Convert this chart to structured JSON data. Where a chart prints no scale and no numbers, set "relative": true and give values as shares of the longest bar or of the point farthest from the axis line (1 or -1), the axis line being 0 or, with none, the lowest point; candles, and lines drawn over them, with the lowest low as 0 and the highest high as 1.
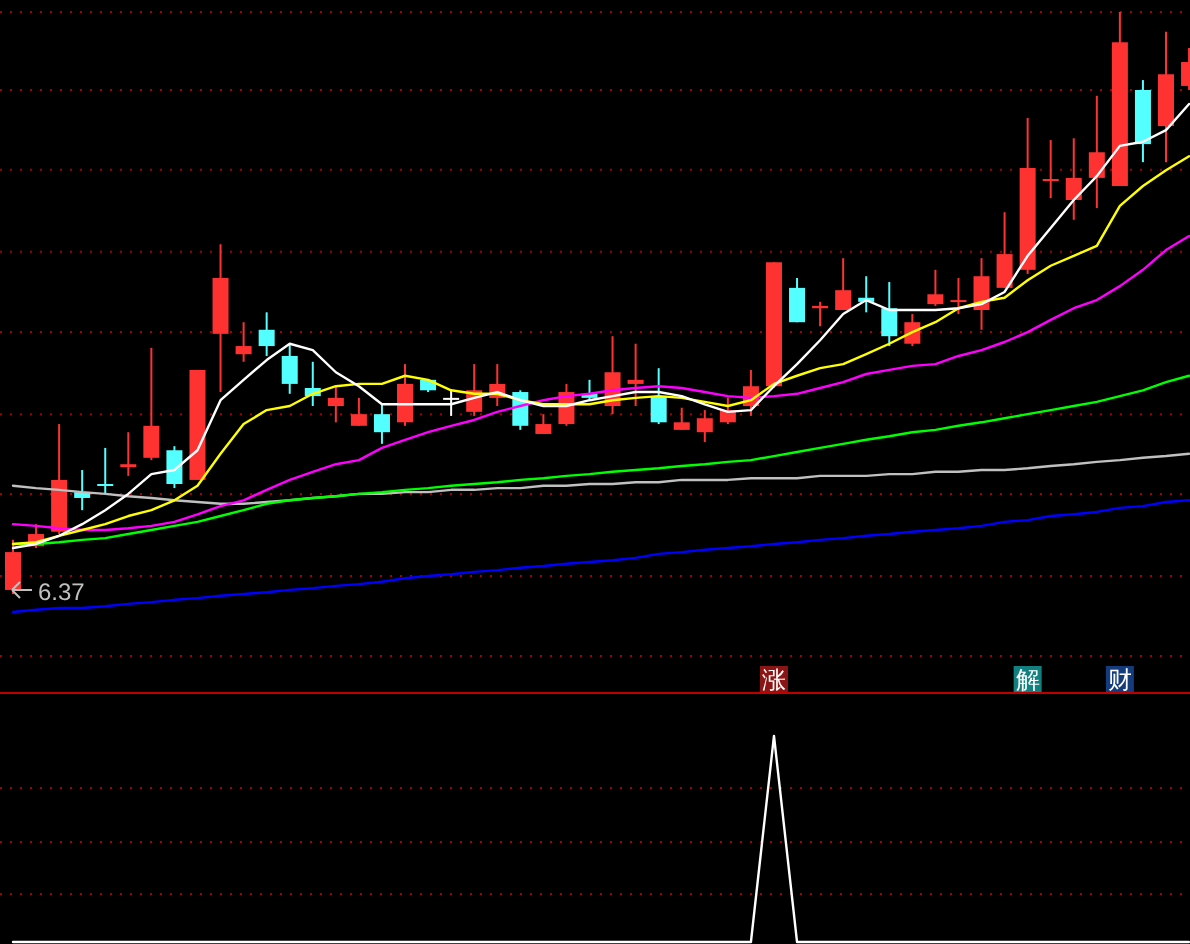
{
  "chart_data": [
    {
      "type": "candlestick",
      "relative": true,
      "categories": [
        null,
        null,
        null,
        null,
        null,
        null,
        null,
        null,
        null,
        null,
        null,
        null,
        null,
        null,
        null,
        null,
        null,
        null,
        null,
        null,
        null,
        null,
        null,
        null,
        null,
        null,
        null,
        null,
        null,
        null,
        null,
        null,
        null,
        null,
        null,
        null,
        null,
        null,
        null,
        null,
        null,
        null,
        null,
        null,
        null,
        null,
        null,
        null,
        null,
        null,
        null,
        null
      ],
      "ohlc": [
        [
          0.007,
          0.093,
          0,
          0.072
        ],
        [
          0.082,
          0.12,
          0.079,
          0.103
        ],
        [
          0.107,
          0.292,
          0.103,
          0.196
        ],
        [
          0.175,
          0.213,
          0.144,
          0.165
        ],
        [
          0.189,
          0.251,
          0.172,
          0.187
        ],
        [
          0.218,
          0.278,
          0.203,
          0.223
        ],
        [
          0.234,
          0.423,
          0.23,
          0.289
        ],
        [
          0.247,
          0.254,
          0.182,
          0.189
        ],
        [
          0.196,
          0.385,
          0.196,
          0.385
        ],
        [
          0.447,
          0.601,
          0.347,
          0.543
        ],
        [
          0.412,
          0.467,
          0.399,
          0.426
        ],
        [
          0.454,
          0.484,
          0.409,
          0.426
        ],
        [
          0.409,
          0.43,
          0.344,
          0.361
        ],
        [
          0.354,
          0.399,
          0.323,
          0.34
        ],
        [
          0.323,
          0.357,
          0.295,
          0.337
        ],
        [
          0.289,
          0.337,
          0.289,
          0.309
        ],
        [
          0.309,
          0.326,
          0.258,
          0.278
        ],
        [
          0.295,
          0.395,
          0.289,
          0.361
        ],
        [
          0.368,
          0.368,
          0.347,
          0.35
        ],
        [
          0.337,
          0.35,
          0.306,
          0.337
        ],
        [
          0.313,
          0.395,
          0.306,
          0.35
        ],
        [
          0.337,
          0.395,
          0.323,
          0.361
        ],
        [
          0.347,
          0.35,
          0.282,
          0.289
        ],
        [
          0.275,
          0.309,
          0.275,
          0.292
        ],
        [
          0.292,
          0.361,
          0.289,
          0.347
        ],
        [
          0.344,
          0.368,
          0.333,
          0.337
        ],
        [
          0.323,
          0.443,
          0.309,
          0.381
        ],
        [
          0.361,
          0.43,
          0.323,
          0.368
        ],
        [
          0.34,
          0.388,
          0.292,
          0.295
        ],
        [
          0.282,
          0.32,
          0.282,
          0.295
        ],
        [
          0.278,
          0.316,
          0.261,
          0.302
        ],
        [
          0.295,
          0.337,
          0.292,
          0.316
        ],
        [
          0.323,
          0.385,
          0.306,
          0.357
        ],
        [
          0.357,
          0.57,
          0.354,
          0.57
        ],
        [
          0.526,
          0.543,
          0.467,
          0.467
        ],
        [
          0.491,
          0.502,
          0.46,
          0.495
        ],
        [
          0.488,
          0.577,
          0.488,
          0.522
        ],
        [
          0.509,
          0.546,
          0.484,
          0.502
        ],
        [
          0.491,
          0.536,
          0.426,
          0.443
        ],
        [
          0.43,
          0.481,
          0.426,
          0.467
        ],
        [
          0.498,
          0.557,
          0.495,
          0.515
        ],
        [
          0.502,
          0.543,
          0.481,
          0.505
        ],
        [
          0.488,
          0.577,
          0.454,
          0.546
        ],
        [
          0.526,
          0.656,
          0.526,
          0.584
        ],
        [
          0.557,
          0.818,
          0.55,
          0.732
        ],
        [
          0.71,
          0.78,
          0.68,
          0.713
        ],
        [
          0.677,
          0.783,
          0.643,
          0.715
        ],
        [
          0.715,
          0.856,
          0.663,
          0.759
        ],
        [
          0.701,
          1,
          0.701,
          0.948
        ],
        [
          0.866,
          0.883,
          0.742,
          0.773
        ],
        [
          0.804,
          0.966,
          0.742,
          0.893
        ],
        [
          0.873,
          0.938,
          0.866,
          0.914
        ]
      ],
      "colors": [
        "#ff3232",
        "#ff3232",
        "#ff3232",
        "#54ffff",
        "#54ffff",
        "#ff3232",
        "#ff3232",
        "#54ffff",
        "#ff3232",
        "#ff3232",
        "#ff3232",
        "#54ffff",
        "#54ffff",
        "#54ffff",
        "#ff3232",
        "#ff3232",
        "#54ffff",
        "#ff3232",
        "#54ffff",
        "#ffffff",
        "#ff3232",
        "#ff3232",
        "#54ffff",
        "#ff3232",
        "#ff3232",
        "#54ffff",
        "#ff3232",
        "#ff3232",
        "#54ffff",
        "#ff3232",
        "#ff3232",
        "#ff3232",
        "#ff3232",
        "#ff3232",
        "#54ffff",
        "#ff3232",
        "#ff3232",
        "#54ffff",
        "#54ffff",
        "#ff3232",
        "#ff3232",
        "#ff3232",
        "#ff3232",
        "#ff3232",
        "#ff3232",
        "#ff3232",
        "#ff3232",
        "#ff3232",
        "#ff3232",
        "#54ffff",
        "#ff3232",
        "#ff3232"
      ],
      "series": [
        {
          "type": "line",
          "color": "#0000ff",
          "values": [
            -0.031,
            -0.027,
            -0.024,
            -0.024,
            -0.021,
            -0.017,
            -0.014,
            -0.01,
            -0.007,
            -0.003,
            0,
            0.003,
            0.007,
            0.01,
            0.014,
            0.017,
            0.021,
            0.027,
            0.031,
            0.034,
            0.038,
            0.041,
            0.045,
            0.048,
            0.052,
            0.055,
            0.058,
            0.062,
            0.069,
            0.072,
            0.076,
            0.079,
            0.082,
            0.086,
            0.089,
            0.093,
            0.096,
            0.1,
            0.103,
            0.107,
            0.11,
            0.113,
            0.117,
            0.124,
            0.127,
            0.134,
            0.137,
            0.141,
            0.148,
            0.151,
            0.158,
            0.161
          ]
        },
        {
          "type": "line",
          "color": "#c0c0c0",
          "values": [
            0.186,
            0.182,
            0.179,
            0.175,
            0.172,
            0.168,
            0.165,
            0.161,
            0.158,
            0.155,
            0.155,
            0.158,
            0.161,
            0.165,
            0.168,
            0.172,
            0.172,
            0.175,
            0.175,
            0.179,
            0.179,
            0.182,
            0.182,
            0.186,
            0.186,
            0.189,
            0.189,
            0.192,
            0.192,
            0.196,
            0.196,
            0.196,
            0.199,
            0.199,
            0.199,
            0.203,
            0.203,
            0.203,
            0.206,
            0.206,
            0.21,
            0.21,
            0.213,
            0.213,
            0.216,
            0.22,
            0.223,
            0.227,
            0.23,
            0.234,
            0.237,
            0.241
          ]
        },
        {
          "type": "line",
          "color": "#00ff00",
          "values": [
            0.086,
            0.086,
            0.089,
            0.093,
            0.096,
            0.103,
            0.11,
            0.117,
            0.124,
            0.134,
            0.144,
            0.155,
            0.161,
            0.165,
            0.168,
            0.172,
            0.175,
            0.179,
            0.182,
            0.186,
            0.189,
            0.192,
            0.196,
            0.199,
            0.203,
            0.206,
            0.21,
            0.213,
            0.216,
            0.22,
            0.223,
            0.227,
            0.23,
            0.237,
            0.244,
            0.251,
            0.258,
            0.265,
            0.271,
            0.278,
            0.282,
            0.289,
            0.295,
            0.302,
            0.309,
            0.316,
            0.323,
            0.33,
            0.34,
            0.35,
            0.364,
            0.375
          ]
        },
        {
          "type": "line",
          "color": "#ff00ff",
          "values": [
            0.12,
            0.117,
            0.113,
            0.11,
            0.11,
            0.113,
            0.117,
            0.124,
            0.137,
            0.151,
            0.161,
            0.179,
            0.196,
            0.21,
            0.223,
            0.23,
            0.251,
            0.265,
            0.278,
            0.289,
            0.299,
            0.313,
            0.323,
            0.333,
            0.34,
            0.344,
            0.35,
            0.354,
            0.357,
            0.354,
            0.347,
            0.34,
            0.337,
            0.34,
            0.344,
            0.354,
            0.364,
            0.378,
            0.385,
            0.392,
            0.395,
            0.409,
            0.419,
            0.433,
            0.45,
            0.471,
            0.491,
            0.505,
            0.529,
            0.557,
            0.591,
            0.615
          ]
        },
        {
          "type": "line",
          "color": "#ffff00",
          "values": [
            0.086,
            0.089,
            0.1,
            0.11,
            0.12,
            0.134,
            0.144,
            0.161,
            0.186,
            0.241,
            0.292,
            0.316,
            0.323,
            0.344,
            0.357,
            0.361,
            0.361,
            0.375,
            0.368,
            0.35,
            0.344,
            0.344,
            0.333,
            0.326,
            0.326,
            0.326,
            0.333,
            0.337,
            0.34,
            0.337,
            0.33,
            0.323,
            0.333,
            0.361,
            0.375,
            0.388,
            0.395,
            0.412,
            0.43,
            0.45,
            0.467,
            0.491,
            0.502,
            0.509,
            0.539,
            0.564,
            0.581,
            0.598,
            0.667,
            0.701,
            0.728,
            0.752
          ]
        },
        {
          "type": "line",
          "color": "#ffffff",
          "values": [
            0.079,
            0.086,
            0.1,
            0.12,
            0.144,
            0.172,
            0.206,
            0.213,
            0.247,
            0.333,
            0.368,
            0.402,
            0.43,
            0.419,
            0.381,
            0.357,
            0.326,
            0.326,
            0.326,
            0.326,
            0.337,
            0.347,
            0.333,
            0.323,
            0.323,
            0.333,
            0.34,
            0.347,
            0.347,
            0.34,
            0.326,
            0.313,
            0.316,
            0.357,
            0.395,
            0.436,
            0.481,
            0.505,
            0.488,
            0.488,
            0.488,
            0.491,
            0.498,
            0.519,
            0.581,
            0.629,
            0.677,
            0.718,
            0.77,
            0.777,
            0.797,
            0.842
          ]
        }
      ],
      "annotations": [
        "6.37"
      ],
      "ref_lines": [
        {
          "axis": "y",
          "value": 0.031,
          "color": "#a00000",
          "line_style": "dotted"
        },
        {
          "axis": "y",
          "value": 0.172,
          "color": "#a00000",
          "line_style": "dotted"
        },
        {
          "axis": "y",
          "value": 0.309,
          "color": "#a00000",
          "line_style": "dotted"
        },
        {
          "axis": "y",
          "value": 0.45,
          "color": "#a00000",
          "line_style": "dotted"
        },
        {
          "axis": "y",
          "value": 0.588,
          "color": "#a00000",
          "line_style": "dotted"
        },
        {
          "axis": "y",
          "value": 0.729,
          "color": "#a00000",
          "line_style": "dotted"
        },
        {
          "axis": "y",
          "value": 0.866,
          "color": "#a00000",
          "line_style": "dotted"
        },
        {
          "axis": "y",
          "value": 1,
          "color": "#a00000",
          "line_style": "dotted"
        }
      ]
    },
    {
      "type": "line",
      "relative": true,
      "ref_lines": [
        {
          "axis": "y",
          "value": 0.748,
          "color": "#a00000",
          "line_style": "dotted"
        },
        {
          "axis": "y",
          "value": 0.485,
          "color": "#a00000",
          "line_style": "dotted"
        },
        {
          "axis": "y",
          "value": 0.233,
          "color": "#a00000",
          "line_style": "dotted"
        }
      ],
      "categories": [
        null,
        null,
        null,
        null,
        null,
        null,
        null,
        null,
        null,
        null,
        null,
        null,
        null,
        null,
        null,
        null,
        null,
        null,
        null,
        null,
        null,
        null,
        null,
        null,
        null,
        null,
        null,
        null,
        null,
        null,
        null,
        null,
        null,
        "涨",
        null,
        null,
        null,
        null,
        null,
        null,
        null,
        null,
        null,
        null,
        "解",
        null,
        null,
        null,
        "财",
        null,
        null,
        null
      ],
      "series": [
        {
          "color": "#ffffff",
          "values": [
            0,
            0,
            0,
            0,
            0,
            0,
            0,
            0,
            0,
            0,
            0,
            0,
            0,
            0,
            0,
            0,
            0,
            0,
            0,
            0,
            0,
            0,
            0,
            0,
            0,
            0,
            0,
            0,
            0,
            0,
            0,
            0,
            0,
            1,
            0,
            0,
            0,
            0,
            0,
            0,
            0,
            0,
            0,
            0,
            0,
            0,
            0,
            0,
            0,
            0,
            0,
            0
          ]
        }
      ]
    }
  ]
}
